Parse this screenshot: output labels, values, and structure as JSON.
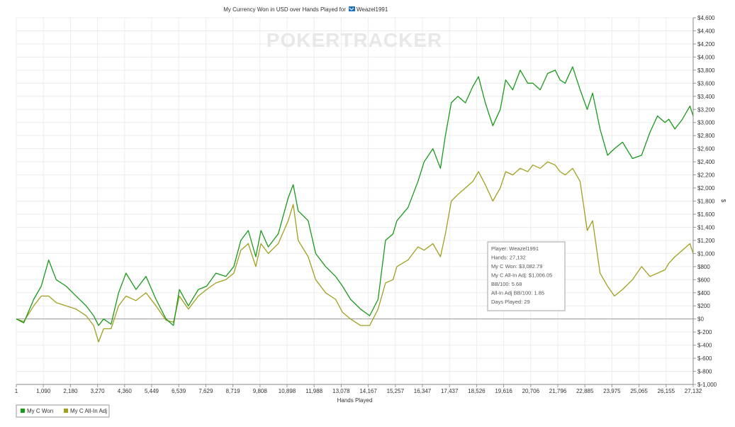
{
  "chart_data": {
    "type": "line",
    "title": "My Currency Won in USD over Hands Played for",
    "player_name": "Weazel1991",
    "watermark": "POKERTRACKER",
    "xlabel": "Hands Played",
    "ylabel": "$",
    "xlim": [
      1,
      27132
    ],
    "ylim": [
      -1000,
      4600
    ],
    "x_ticks": [
      "1",
      "1,090",
      "2,180",
      "3,270",
      "4,360",
      "5,449",
      "6,539",
      "7,629",
      "8,719",
      "9,808",
      "10,898",
      "11,988",
      "13,078",
      "14,167",
      "15,257",
      "16,347",
      "17,437",
      "18,526",
      "19,616",
      "20,706",
      "21,796",
      "22,885",
      "23,975",
      "25,065",
      "26,155",
      "27,132"
    ],
    "y_ticks": [
      {
        "value": 4600,
        "label": "$4,600"
      },
      {
        "value": 4400,
        "label": "$4,400"
      },
      {
        "value": 4200,
        "label": "$4,200"
      },
      {
        "value": 4000,
        "label": "$4,000"
      },
      {
        "value": 3800,
        "label": "$3,800"
      },
      {
        "value": 3600,
        "label": "$3,600"
      },
      {
        "value": 3400,
        "label": "$3,400"
      },
      {
        "value": 3200,
        "label": "$3,200"
      },
      {
        "value": 3000,
        "label": "$3,000"
      },
      {
        "value": 2800,
        "label": "$2,800"
      },
      {
        "value": 2600,
        "label": "$2,600"
      },
      {
        "value": 2400,
        "label": "$2,400"
      },
      {
        "value": 2200,
        "label": "$2,200"
      },
      {
        "value": 2000,
        "label": "$2,000"
      },
      {
        "value": 1800,
        "label": "$1,800"
      },
      {
        "value": 1600,
        "label": "$1,600"
      },
      {
        "value": 1400,
        "label": "$1,400"
      },
      {
        "value": 1200,
        "label": "$1,200"
      },
      {
        "value": 1000,
        "label": "$1,000"
      },
      {
        "value": 800,
        "label": "$800"
      },
      {
        "value": 600,
        "label": "$600"
      },
      {
        "value": 400,
        "label": "$400"
      },
      {
        "value": 200,
        "label": "$200"
      },
      {
        "value": 0,
        "label": "$0"
      },
      {
        "value": -200,
        "label": "$-200"
      },
      {
        "value": -400,
        "label": "$-400"
      },
      {
        "value": -600,
        "label": "$-600"
      },
      {
        "value": -800,
        "label": "$-800"
      },
      {
        "value": -1000,
        "label": "$-1,000"
      }
    ],
    "grid": true,
    "legend_position": "bottom-left",
    "series": [
      {
        "name": "My C Won",
        "color": "#1a9a1a",
        "x": [
          1,
          300,
          700,
          1000,
          1300,
          1600,
          2000,
          2400,
          2800,
          3100,
          3300,
          3500,
          3800,
          4100,
          4400,
          4800,
          5200,
          5600,
          6000,
          6300,
          6539,
          6900,
          7300,
          7629,
          8000,
          8400,
          8719,
          9000,
          9300,
          9600,
          9808,
          10100,
          10500,
          10898,
          11100,
          11300,
          11700,
          12000,
          12400,
          12800,
          13078,
          13400,
          13800,
          14167,
          14500,
          14800,
          15100,
          15257,
          15700,
          16100,
          16347,
          16700,
          17000,
          17200,
          17437,
          17700,
          18000,
          18300,
          18526,
          18800,
          19100,
          19400,
          19616,
          19900,
          20200,
          20500,
          20706,
          21000,
          21300,
          21600,
          21796,
          22000,
          22300,
          22600,
          22885,
          23100,
          23400,
          23700,
          23975,
          24300,
          24700,
          25065,
          25400,
          25700,
          26000,
          26155,
          26400,
          26700,
          27000,
          27132
        ],
        "y": [
          0,
          -60,
          300,
          500,
          900,
          600,
          500,
          350,
          200,
          50,
          -100,
          0,
          -80,
          400,
          700,
          450,
          650,
          300,
          0,
          -100,
          450,
          200,
          450,
          500,
          700,
          650,
          800,
          1200,
          1350,
          950,
          1350,
          1100,
          1300,
          1850,
          2050,
          1650,
          1500,
          1000,
          800,
          650,
          500,
          300,
          150,
          50,
          300,
          1200,
          1300,
          1500,
          1700,
          2100,
          2400,
          2600,
          2300,
          2800,
          3300,
          3400,
          3300,
          3550,
          3700,
          3300,
          2950,
          3200,
          3650,
          3500,
          3800,
          3600,
          3600,
          3500,
          3750,
          3800,
          3650,
          3600,
          3850,
          3500,
          3200,
          3450,
          2900,
          2500,
          2600,
          2700,
          2450,
          2500,
          2850,
          3100,
          3000,
          3050,
          2900,
          3050,
          3250,
          3100
        ]
      },
      {
        "name": "My C All-In Adj",
        "color": "#a0a020",
        "x": [
          1,
          300,
          700,
          1000,
          1300,
          1600,
          2000,
          2400,
          2800,
          3100,
          3300,
          3500,
          3800,
          4100,
          4400,
          4800,
          5200,
          5600,
          6000,
          6300,
          6539,
          6900,
          7300,
          7629,
          8000,
          8400,
          8719,
          9000,
          9300,
          9600,
          9808,
          10100,
          10500,
          10898,
          11100,
          11300,
          11700,
          12000,
          12400,
          12800,
          13078,
          13400,
          13800,
          14167,
          14500,
          14800,
          15100,
          15257,
          15700,
          16100,
          16347,
          16700,
          17000,
          17200,
          17437,
          17700,
          18000,
          18300,
          18526,
          18800,
          19100,
          19400,
          19616,
          19900,
          20200,
          20500,
          20706,
          21000,
          21300,
          21600,
          21796,
          22000,
          22300,
          22600,
          22885,
          23100,
          23400,
          23700,
          23975,
          24300,
          24700,
          25065,
          25400,
          25700,
          26000,
          26155,
          26400,
          26700,
          27000,
          27132
        ],
        "y": [
          0,
          -40,
          200,
          350,
          350,
          250,
          200,
          150,
          50,
          -100,
          -350,
          -150,
          -150,
          200,
          350,
          280,
          400,
          200,
          -20,
          -50,
          350,
          150,
          350,
          450,
          550,
          600,
          700,
          1050,
          1150,
          800,
          1150,
          1000,
          1150,
          1500,
          1750,
          1200,
          950,
          600,
          400,
          300,
          100,
          0,
          -100,
          -100,
          150,
          550,
          600,
          800,
          900,
          1100,
          1050,
          1150,
          950,
          1300,
          1800,
          1900,
          2000,
          2100,
          2250,
          2050,
          1800,
          2000,
          2250,
          2200,
          2300,
          2250,
          2350,
          2300,
          2400,
          2350,
          2250,
          2200,
          2300,
          2100,
          1350,
          1500,
          700,
          500,
          350,
          450,
          600,
          800,
          650,
          700,
          750,
          850,
          950,
          1050,
          1150,
          1000
        ]
      }
    ],
    "tooltip": {
      "lines": [
        "Player: Weazel1991",
        "Hands: 27,132",
        "My C Won: $3,082.79",
        "My C All-In Adj: $1,006.05",
        "BB/100: 5.68",
        "All-In Adj BB/100: 1.85",
        "Days Played: 29"
      ]
    }
  }
}
